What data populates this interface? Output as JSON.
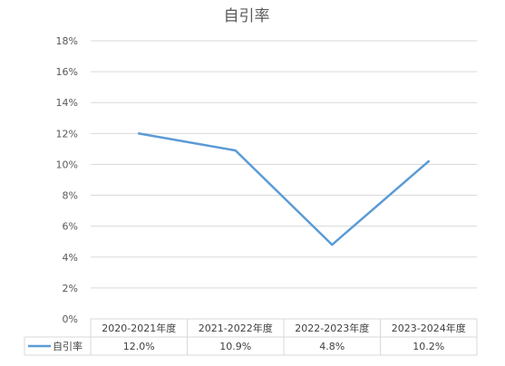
{
  "chart_data": {
    "type": "line",
    "title": "自引率",
    "categories": [
      "2020-2021年度",
      "2021-2022年度",
      "2022-2023年度",
      "2023-2024年度"
    ],
    "series": [
      {
        "name": "自引率",
        "values": [
          12.0,
          10.9,
          4.8,
          10.2
        ],
        "labels": [
          "12.0%",
          "10.9%",
          "4.8%",
          "10.2%"
        ]
      }
    ],
    "ylim": [
      0,
      18
    ],
    "yticks": [
      "0%",
      "2%",
      "4%",
      "6%",
      "8%",
      "10%",
      "12%",
      "14%",
      "16%",
      "18%"
    ],
    "grid": true,
    "legend": "data-table",
    "colors": {
      "series": "#5b9bd5",
      "grid": "#d9d9d9",
      "axis_text": "#595959",
      "title": "#595959",
      "table_text": "#404040"
    }
  }
}
